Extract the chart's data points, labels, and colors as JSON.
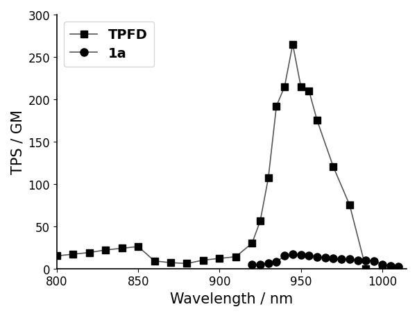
{
  "TPFD_x": [
    800,
    810,
    820,
    830,
    840,
    850,
    860,
    870,
    880,
    890,
    900,
    910,
    920,
    925,
    930,
    935,
    940,
    945,
    950,
    955,
    960,
    970,
    980,
    990,
    1000,
    1010
  ],
  "TPFD_y": [
    15,
    17,
    19,
    22,
    24,
    26,
    9,
    7,
    6,
    10,
    12,
    14,
    30,
    56,
    107,
    192,
    215,
    265,
    215,
    210,
    175,
    120,
    75,
    0,
    0,
    0
  ],
  "1a_x": [
    920,
    925,
    930,
    935,
    940,
    945,
    950,
    955,
    960,
    965,
    970,
    975,
    980,
    985,
    990,
    995,
    1000,
    1005,
    1010
  ],
  "1a_y": [
    5,
    5,
    6,
    8,
    15,
    17,
    16,
    15,
    14,
    13,
    12,
    11,
    11,
    10,
    10,
    9,
    5,
    3,
    2
  ],
  "title": "",
  "xlabel": "Wavelength / nm",
  "ylabel": "TPS / GM",
  "xlim": [
    800,
    1015
  ],
  "ylim": [
    0,
    300
  ],
  "yticks": [
    0,
    50,
    100,
    150,
    200,
    250,
    300
  ],
  "xticks": [
    800,
    850,
    900,
    950,
    1000
  ],
  "legend_labels": [
    "TPFD",
    "1a"
  ],
  "line_color": "#555555",
  "marker_color": "#000000",
  "background_color": "#ffffff",
  "legend_fontsize": 14,
  "axis_label_fontsize": 15,
  "tick_fontsize": 12
}
